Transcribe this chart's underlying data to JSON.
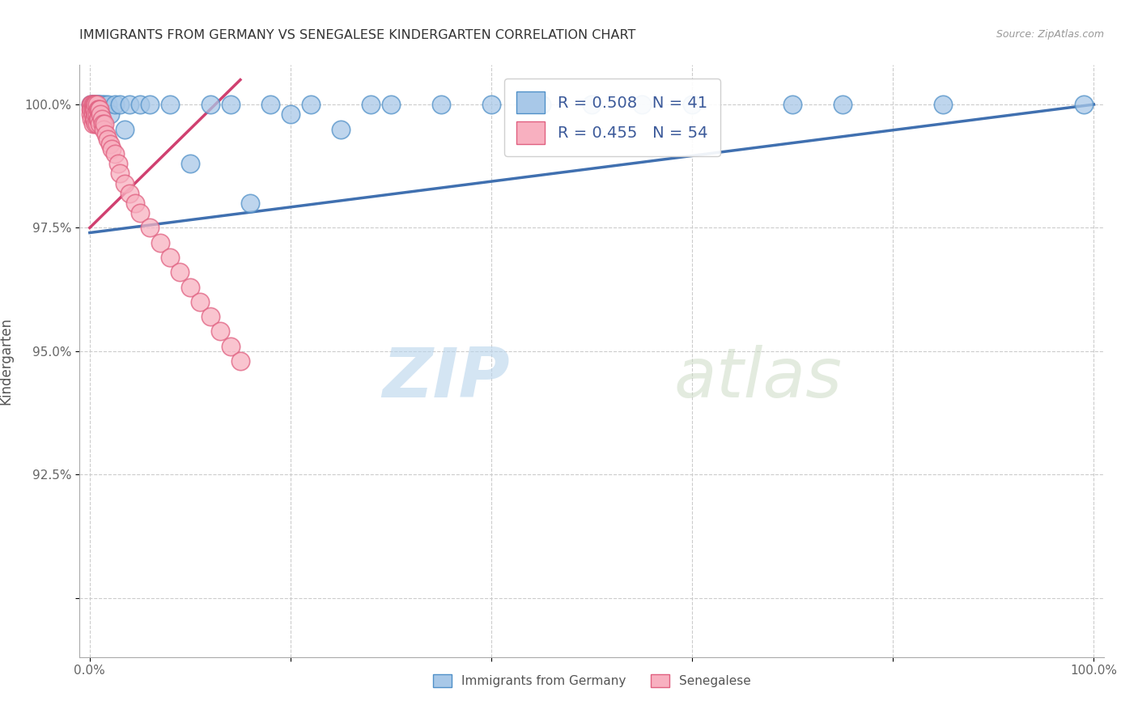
{
  "title": "IMMIGRANTS FROM GERMANY VS SENEGALESE KINDERGARTEN CORRELATION CHART",
  "source_text": "Source: ZipAtlas.com",
  "ylabel": "Kindergarten",
  "xlim": [
    -0.01,
    1.01
  ],
  "ylim": [
    0.888,
    1.008
  ],
  "x_ticks": [
    0.0,
    0.2,
    0.4,
    0.6,
    0.8,
    1.0
  ],
  "x_tick_labels": [
    "0.0%",
    "",
    "",
    "",
    "",
    "100.0%"
  ],
  "y_ticks": [
    0.9,
    0.925,
    0.95,
    0.975,
    1.0
  ],
  "y_tick_labels": [
    "",
    "92.5%",
    "95.0%",
    "97.5%",
    "100.0%"
  ],
  "blue_R": 0.508,
  "blue_N": 41,
  "pink_R": 0.455,
  "pink_N": 54,
  "blue_color": "#a8c8e8",
  "blue_edge_color": "#5090c8",
  "blue_line_color": "#4070b0",
  "pink_color": "#f8b0c0",
  "pink_edge_color": "#e06080",
  "pink_line_color": "#d04070",
  "legend_text_color": "#3c5a9a",
  "watermark_zip": "ZIP",
  "watermark_atlas": "atlas",
  "background_color": "#ffffff",
  "blue_x": [
    0.001,
    0.002,
    0.003,
    0.004,
    0.005,
    0.006,
    0.007,
    0.008,
    0.009,
    0.01,
    0.012,
    0.015,
    0.018,
    0.02,
    0.025,
    0.03,
    0.035,
    0.04,
    0.05,
    0.06,
    0.08,
    0.1,
    0.12,
    0.14,
    0.16,
    0.18,
    0.2,
    0.22,
    0.25,
    0.28,
    0.3,
    0.35,
    0.4,
    0.45,
    0.5,
    0.55,
    0.6,
    0.7,
    0.75,
    0.85,
    0.99
  ],
  "blue_y": [
    1.0,
    1.0,
    1.0,
    1.0,
    1.0,
    1.0,
    1.0,
    1.0,
    1.0,
    1.0,
    1.0,
    1.0,
    1.0,
    0.998,
    1.0,
    1.0,
    0.995,
    1.0,
    1.0,
    1.0,
    1.0,
    0.988,
    1.0,
    1.0,
    0.98,
    1.0,
    0.998,
    1.0,
    0.995,
    1.0,
    1.0,
    1.0,
    1.0,
    1.0,
    1.0,
    1.0,
    1.0,
    1.0,
    1.0,
    1.0,
    1.0
  ],
  "pink_x": [
    0.001,
    0.001,
    0.001,
    0.002,
    0.002,
    0.002,
    0.003,
    0.003,
    0.003,
    0.003,
    0.004,
    0.004,
    0.004,
    0.005,
    0.005,
    0.005,
    0.006,
    0.006,
    0.006,
    0.007,
    0.007,
    0.007,
    0.008,
    0.008,
    0.009,
    0.009,
    0.01,
    0.01,
    0.011,
    0.012,
    0.013,
    0.014,
    0.015,
    0.016,
    0.018,
    0.02,
    0.022,
    0.025,
    0.028,
    0.03,
    0.035,
    0.04,
    0.045,
    0.05,
    0.06,
    0.07,
    0.08,
    0.09,
    0.1,
    0.11,
    0.12,
    0.13,
    0.14,
    0.15
  ],
  "pink_y": [
    1.0,
    0.999,
    0.998,
    1.0,
    0.999,
    0.997,
    1.0,
    0.999,
    0.998,
    0.996,
    1.0,
    0.999,
    0.997,
    1.0,
    0.999,
    0.997,
    1.0,
    0.998,
    0.996,
    1.0,
    0.998,
    0.996,
    0.999,
    0.997,
    0.999,
    0.997,
    0.999,
    0.996,
    0.998,
    0.997,
    0.996,
    0.995,
    0.996,
    0.994,
    0.993,
    0.992,
    0.991,
    0.99,
    0.988,
    0.986,
    0.984,
    0.982,
    0.98,
    0.978,
    0.975,
    0.972,
    0.969,
    0.966,
    0.963,
    0.96,
    0.957,
    0.954,
    0.951,
    0.948
  ],
  "blue_trend_x": [
    0.0,
    1.0
  ],
  "blue_trend_y": [
    0.974,
    1.0
  ],
  "pink_trend_x": [
    0.0,
    0.15
  ],
  "pink_trend_y": [
    0.975,
    1.005
  ]
}
